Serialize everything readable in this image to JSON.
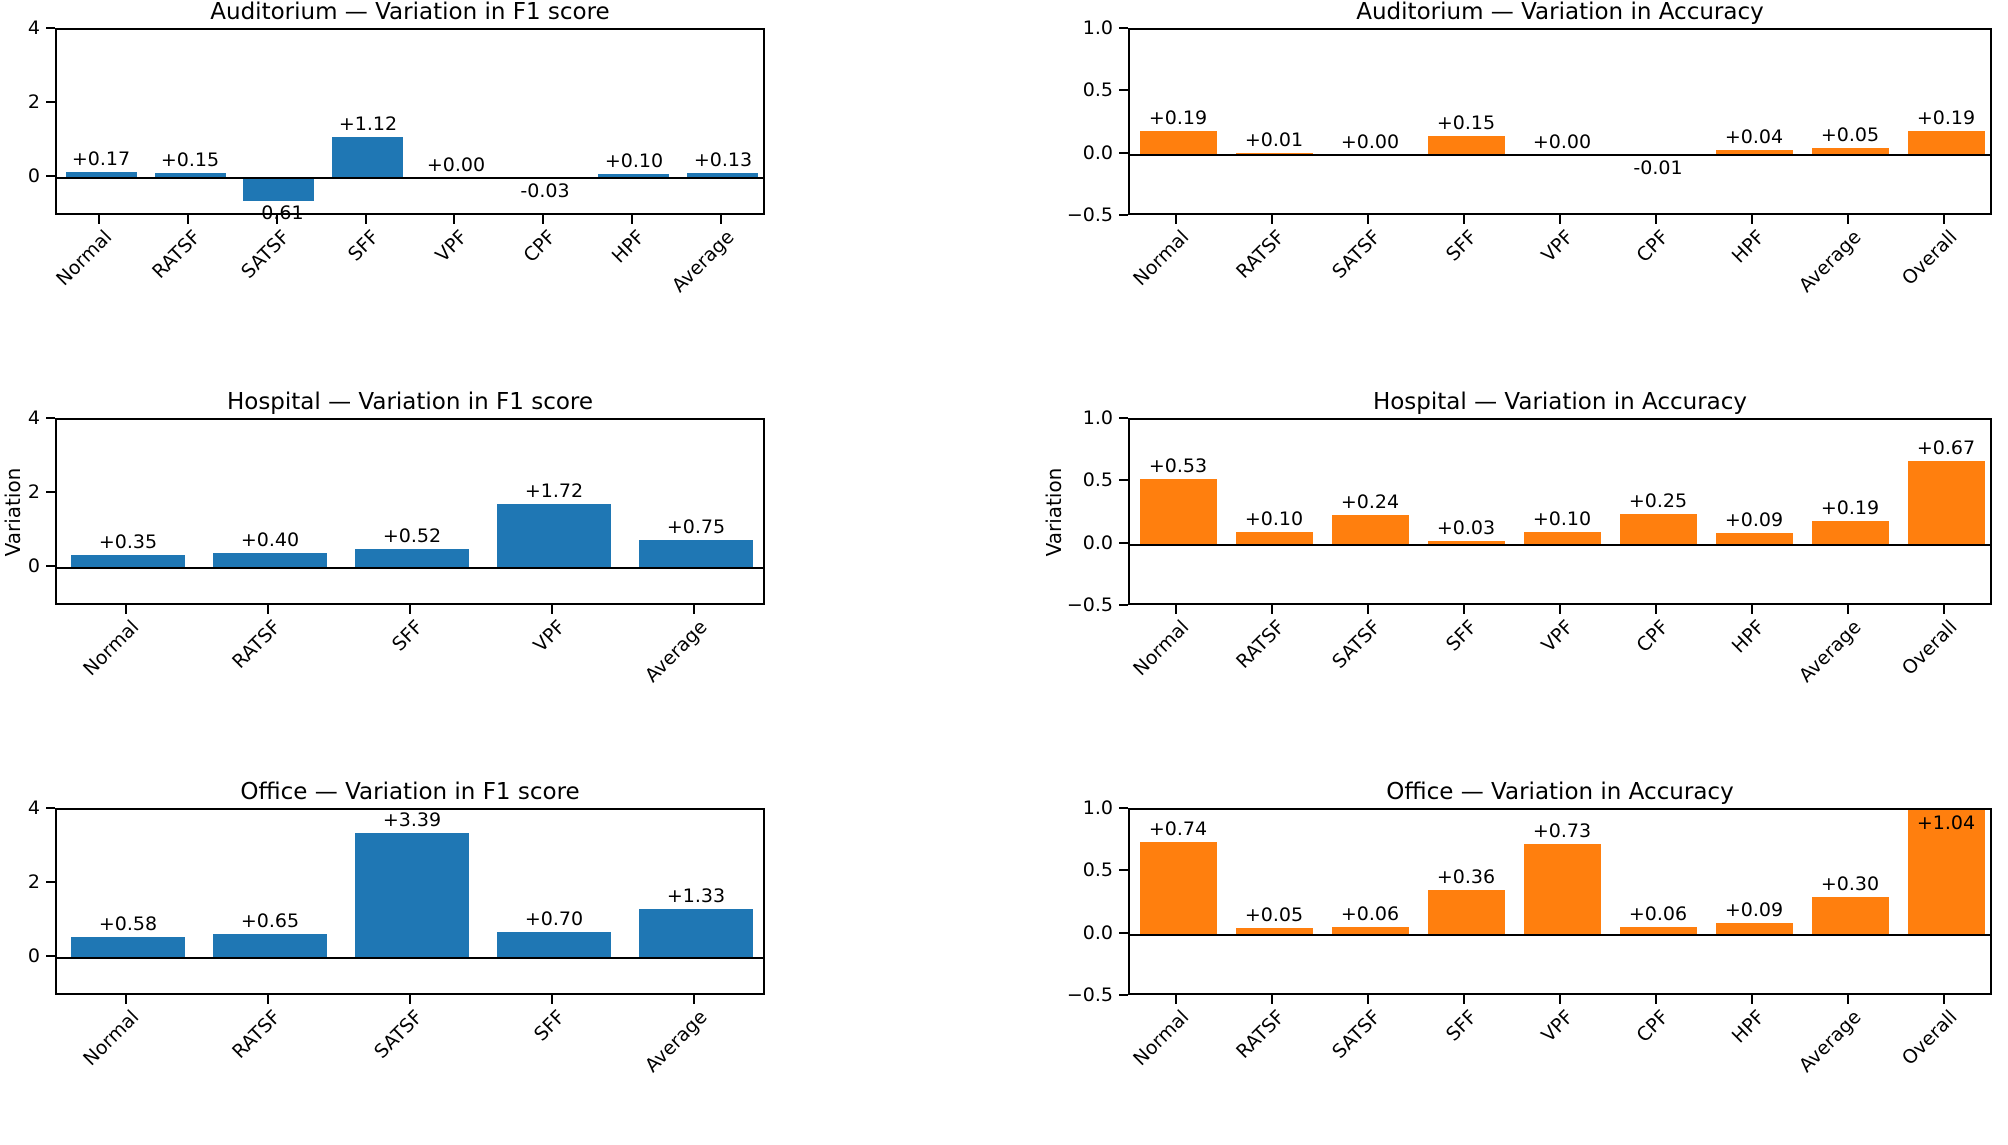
{
  "figure": {
    "background": "#ffffff",
    "text_color": "#000000",
    "blue": "#1f77b4",
    "orange": "#ff7f0e"
  },
  "chart_data": [
    {
      "type": "bar",
      "title": "Auditorium — Variation in F1 score",
      "ylabel": "",
      "categories": [
        "Normal",
        "RATSF",
        "SATSF",
        "SFF",
        "VPF",
        "CPF",
        "HPF",
        "Average"
      ],
      "values": [
        0.17,
        0.15,
        -0.61,
        1.12,
        0.0,
        -0.03,
        0.1,
        0.13
      ],
      "value_labels": [
        "+0.17",
        "+0.15",
        "-0.61",
        "+1.12",
        "+0.00",
        "-0.03",
        "+0.10",
        "+0.13"
      ],
      "bar_color": "#1f77b4",
      "ylim": [
        -1.05,
        4
      ],
      "yticks": [
        0,
        2,
        4
      ],
      "ytick_labels": [
        "0",
        "2",
        "4"
      ],
      "grid": false,
      "zero_line": true
    },
    {
      "type": "bar",
      "title": "Auditorium — Variation in Accuracy",
      "ylabel": "",
      "categories": [
        "Normal",
        "RATSF",
        "SATSF",
        "SFF",
        "VPF",
        "CPF",
        "HPF",
        "Average",
        "Overall"
      ],
      "values": [
        0.19,
        0.01,
        0.0,
        0.15,
        0.0,
        -0.01,
        0.04,
        0.05,
        0.19
      ],
      "value_labels": [
        "+0.19",
        "+0.01",
        "+0.00",
        "+0.15",
        "+0.00",
        "-0.01",
        "+0.04",
        "+0.05",
        "+0.19"
      ],
      "bar_color": "#ff7f0e",
      "ylim": [
        -0.5,
        1.0
      ],
      "yticks": [
        -0.5,
        0.0,
        0.5,
        1.0
      ],
      "ytick_labels": [
        "−0.5",
        "0.0",
        "0.5",
        "1.0"
      ],
      "grid": false,
      "zero_line": true
    },
    {
      "type": "bar",
      "title": "Hospital — Variation in F1 score",
      "ylabel": "Variation",
      "categories": [
        "Normal",
        "RATSF",
        "SFF",
        "VPF",
        "Average"
      ],
      "values": [
        0.35,
        0.4,
        0.52,
        1.72,
        0.75
      ],
      "value_labels": [
        "+0.35",
        "+0.40",
        "+0.52",
        "+1.72",
        "+0.75"
      ],
      "bar_color": "#1f77b4",
      "ylim": [
        -1.05,
        4
      ],
      "yticks": [
        0,
        2,
        4
      ],
      "ytick_labels": [
        "0",
        "2",
        "4"
      ],
      "grid": false,
      "zero_line": true
    },
    {
      "type": "bar",
      "title": "Hospital — Variation in Accuracy",
      "ylabel": "Variation",
      "categories": [
        "Normal",
        "RATSF",
        "SATSF",
        "SFF",
        "VPF",
        "CPF",
        "HPF",
        "Average",
        "Overall"
      ],
      "values": [
        0.53,
        0.1,
        0.24,
        0.03,
        0.1,
        0.25,
        0.09,
        0.19,
        0.67
      ],
      "value_labels": [
        "+0.53",
        "+0.10",
        "+0.24",
        "+0.03",
        "+0.10",
        "+0.25",
        "+0.09",
        "+0.19",
        "+0.67"
      ],
      "bar_color": "#ff7f0e",
      "ylim": [
        -0.5,
        1.0
      ],
      "yticks": [
        -0.5,
        0.0,
        0.5,
        1.0
      ],
      "ytick_labels": [
        "−0.5",
        "0.0",
        "0.5",
        "1.0"
      ],
      "grid": false,
      "zero_line": true
    },
    {
      "type": "bar",
      "title": "Office — Variation in F1 score",
      "ylabel": "",
      "categories": [
        "Normal",
        "RATSF",
        "SATSF",
        "SFF",
        "Average"
      ],
      "values": [
        0.58,
        0.65,
        3.39,
        0.7,
        1.33
      ],
      "value_labels": [
        "+0.58",
        "+0.65",
        "+3.39",
        "+0.70",
        "+1.33"
      ],
      "bar_color": "#1f77b4",
      "ylim": [
        -1.05,
        4
      ],
      "yticks": [
        0,
        2,
        4
      ],
      "ytick_labels": [
        "0",
        "2",
        "4"
      ],
      "grid": false,
      "zero_line": true
    },
    {
      "type": "bar",
      "title": "Office — Variation in Accuracy",
      "ylabel": "",
      "categories": [
        "Normal",
        "RATSF",
        "SATSF",
        "SFF",
        "VPF",
        "CPF",
        "HPF",
        "Average",
        "Overall"
      ],
      "values": [
        0.74,
        0.05,
        0.06,
        0.36,
        0.73,
        0.06,
        0.09,
        0.3,
        1.04
      ],
      "value_labels": [
        "+0.74",
        "+0.05",
        "+0.06",
        "+0.36",
        "+0.73",
        "+0.06",
        "+0.09",
        "+0.30",
        "+1.04"
      ],
      "bar_color": "#ff7f0e",
      "ylim": [
        -0.5,
        1.0
      ],
      "yticks": [
        -0.5,
        0.0,
        0.5,
        1.0
      ],
      "ytick_labels": [
        "−0.5",
        "0.0",
        "0.5",
        "1.0"
      ],
      "grid": false,
      "zero_line": true
    }
  ]
}
